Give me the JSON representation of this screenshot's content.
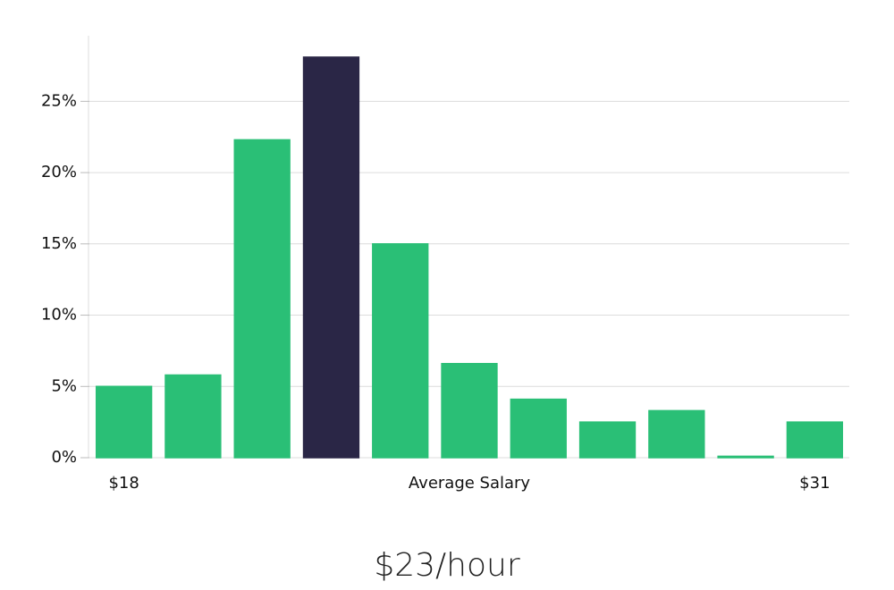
{
  "chart_data": {
    "type": "bar",
    "categories": [
      "$18",
      null,
      null,
      null,
      null,
      "Average Salary",
      null,
      null,
      null,
      null,
      "$31"
    ],
    "values": [
      5.0,
      5.8,
      22.3,
      28.1,
      15.0,
      6.6,
      4.1,
      2.5,
      3.3,
      0.1,
      2.5
    ],
    "colors": [
      "#2abf76",
      "#2abf76",
      "#2abf76",
      "#2a2646",
      "#2abf76",
      "#2abf76",
      "#2abf76",
      "#2abf76",
      "#2abf76",
      "#2abf76",
      "#2abf76"
    ],
    "ylim": [
      0,
      29.6
    ],
    "yticks": [
      {
        "value": 0,
        "label": "0%"
      },
      {
        "value": 5,
        "label": "5%"
      },
      {
        "value": 10,
        "label": "10%"
      },
      {
        "value": 15,
        "label": "15%"
      },
      {
        "value": 20,
        "label": "20%"
      },
      {
        "value": 25,
        "label": "25%"
      }
    ],
    "grid": true,
    "footer": "$23/hour"
  }
}
